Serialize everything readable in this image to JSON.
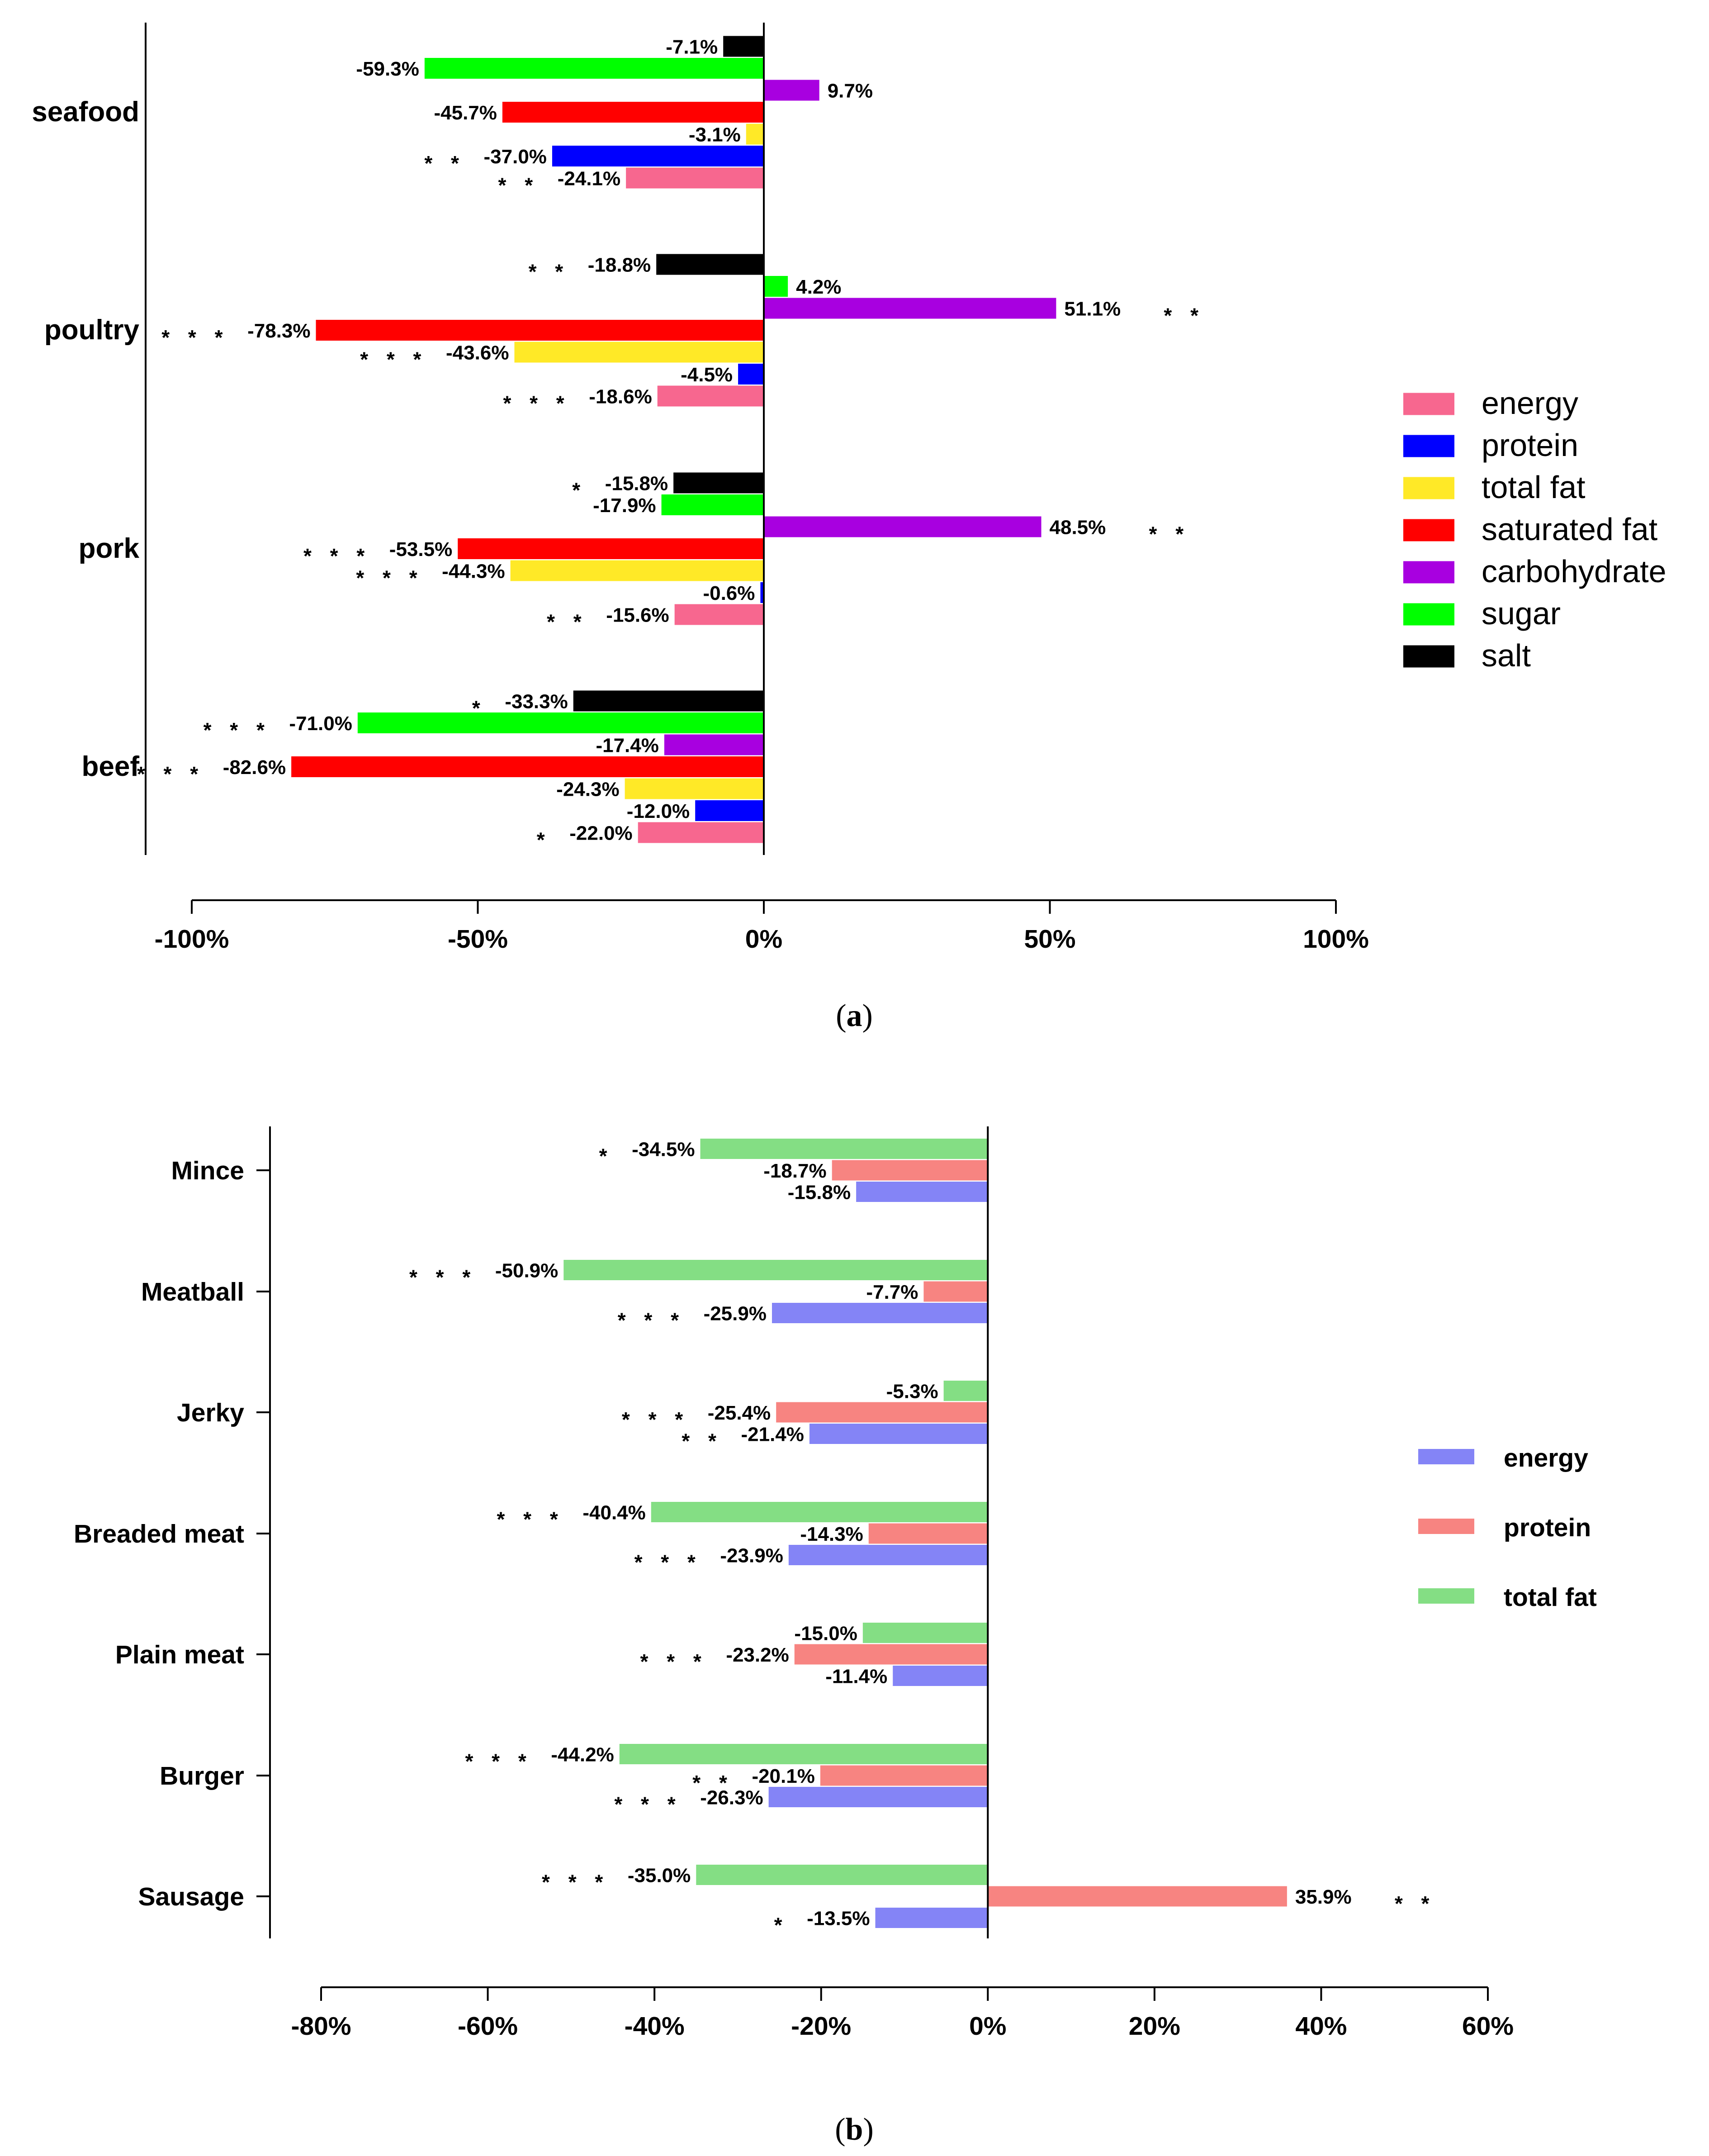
{
  "chart_data": [
    {
      "id": "a",
      "type": "bar",
      "orientation": "horizontal",
      "caption": "a",
      "xlim": [
        -100,
        100
      ],
      "xticks": [
        -100,
        -50,
        0,
        50,
        100
      ],
      "tick_labels": [
        "-100%",
        "-50%",
        "0%",
        "50%",
        "100%"
      ],
      "categories": [
        "seafood",
        "poultry",
        "pork",
        "beef"
      ],
      "legend": [
        "energy",
        "protein",
        "total fat",
        "saturated fat",
        "carbohydrate",
        "sugar",
        "salt"
      ],
      "colors": {
        "energy": "#f7678f",
        "protein": "#0000ff",
        "total fat": "#ffe927",
        "saturated fat": "#ff0000",
        "carbohydrate": "#a800e0",
        "sugar": "#00ff00",
        "salt": "#000000"
      },
      "bars": [
        {
          "category": "seafood",
          "series": "salt",
          "value": -7.1,
          "label": "-7.1%",
          "sig": ""
        },
        {
          "category": "seafood",
          "series": "sugar",
          "value": -59.3,
          "label": "-59.3%",
          "sig": ""
        },
        {
          "category": "seafood",
          "series": "carbohydrate",
          "value": 9.7,
          "label": "9.7%",
          "sig": ""
        },
        {
          "category": "seafood",
          "series": "saturated fat",
          "value": -45.7,
          "label": "-45.7%",
          "sig": ""
        },
        {
          "category": "seafood",
          "series": "total fat",
          "value": -3.1,
          "label": "-3.1%",
          "sig": ""
        },
        {
          "category": "seafood",
          "series": "protein",
          "value": -37.0,
          "label": "-37.0%",
          "sig": "**"
        },
        {
          "category": "seafood",
          "series": "energy",
          "value": -24.1,
          "label": "-24.1%",
          "sig": "**"
        },
        {
          "category": "poultry",
          "series": "salt",
          "value": -18.8,
          "label": "-18.8%",
          "sig": "**"
        },
        {
          "category": "poultry",
          "series": "sugar",
          "value": 4.2,
          "label": "4.2%",
          "sig": ""
        },
        {
          "category": "poultry",
          "series": "carbohydrate",
          "value": 51.1,
          "label": "51.1%",
          "sig": "**"
        },
        {
          "category": "poultry",
          "series": "saturated fat",
          "value": -78.3,
          "label": "-78.3%",
          "sig": "***"
        },
        {
          "category": "poultry",
          "series": "total fat",
          "value": -43.6,
          "label": "-43.6%",
          "sig": "***"
        },
        {
          "category": "poultry",
          "series": "protein",
          "value": -4.5,
          "label": "-4.5%",
          "sig": ""
        },
        {
          "category": "poultry",
          "series": "energy",
          "value": -18.6,
          "label": "-18.6%",
          "sig": "***"
        },
        {
          "category": "pork",
          "series": "salt",
          "value": -15.8,
          "label": "-15.8%",
          "sig": "*"
        },
        {
          "category": "pork",
          "series": "sugar",
          "value": -17.9,
          "label": "-17.9%",
          "sig": ""
        },
        {
          "category": "pork",
          "series": "carbohydrate",
          "value": 48.5,
          "label": "48.5%",
          "sig": "**"
        },
        {
          "category": "pork",
          "series": "saturated fat",
          "value": -53.5,
          "label": "-53.5%",
          "sig": "***"
        },
        {
          "category": "pork",
          "series": "total fat",
          "value": -44.3,
          "label": "-44.3%",
          "sig": "***"
        },
        {
          "category": "pork",
          "series": "protein",
          "value": -0.6,
          "label": "-0.6%",
          "sig": ""
        },
        {
          "category": "pork",
          "series": "energy",
          "value": -15.6,
          "label": "-15.6%",
          "sig": "**"
        },
        {
          "category": "beef",
          "series": "salt",
          "value": -33.3,
          "label": "-33.3%",
          "sig": "*"
        },
        {
          "category": "beef",
          "series": "sugar",
          "value": -71.0,
          "label": "-71.0%",
          "sig": "***"
        },
        {
          "category": "beef",
          "series": "carbohydrate",
          "value": -17.4,
          "label": "-17.4%",
          "sig": ""
        },
        {
          "category": "beef",
          "series": "saturated fat",
          "value": -82.6,
          "label": "-82.6%",
          "sig": "***"
        },
        {
          "category": "beef",
          "series": "total fat",
          "value": -24.3,
          "label": "-24.3%",
          "sig": ""
        },
        {
          "category": "beef",
          "series": "protein",
          "value": -12.0,
          "label": "-12.0%",
          "sig": ""
        },
        {
          "category": "beef",
          "series": "energy",
          "value": -22.0,
          "label": "-22.0%",
          "sig": "*"
        }
      ]
    },
    {
      "id": "b",
      "type": "bar",
      "orientation": "horizontal",
      "caption": "b",
      "xlim": [
        -80,
        60
      ],
      "xticks": [
        -80,
        -60,
        -40,
        -20,
        0,
        20,
        40,
        60
      ],
      "tick_labels": [
        "-80%",
        "-60%",
        "-40%",
        "-20%",
        "0%",
        "20%",
        "40%",
        "60%"
      ],
      "categories": [
        "Mince",
        "Meatball",
        "Jerky",
        "Breaded meat",
        "Plain meat",
        "Burger",
        "Sausage"
      ],
      "legend": [
        "energy",
        "protein",
        "total fat"
      ],
      "colors": {
        "energy": "#8484f6",
        "protein": "#f78481",
        "total fat": "#84de84"
      },
      "bars": [
        {
          "category": "Mince",
          "series": "total fat",
          "value": -34.5,
          "label": "-34.5%",
          "sig": "*"
        },
        {
          "category": "Mince",
          "series": "protein",
          "value": -18.7,
          "label": "-18.7%",
          "sig": ""
        },
        {
          "category": "Mince",
          "series": "energy",
          "value": -15.8,
          "label": "-15.8%",
          "sig": ""
        },
        {
          "category": "Meatball",
          "series": "total fat",
          "value": -50.9,
          "label": "-50.9%",
          "sig": "***"
        },
        {
          "category": "Meatball",
          "series": "protein",
          "value": -7.7,
          "label": "-7.7%",
          "sig": ""
        },
        {
          "category": "Meatball",
          "series": "energy",
          "value": -25.9,
          "label": "-25.9%",
          "sig": "***"
        },
        {
          "category": "Jerky",
          "series": "total fat",
          "value": -5.3,
          "label": "-5.3%",
          "sig": ""
        },
        {
          "category": "Jerky",
          "series": "protein",
          "value": -25.4,
          "label": "-25.4%",
          "sig": "***"
        },
        {
          "category": "Jerky",
          "series": "energy",
          "value": -21.4,
          "label": "-21.4%",
          "sig": "**"
        },
        {
          "category": "Breaded meat",
          "series": "total fat",
          "value": -40.4,
          "label": "-40.4%",
          "sig": "***"
        },
        {
          "category": "Breaded meat",
          "series": "protein",
          "value": -14.3,
          "label": "-14.3%",
          "sig": ""
        },
        {
          "category": "Breaded meat",
          "series": "energy",
          "value": -23.9,
          "label": "-23.9%",
          "sig": "***"
        },
        {
          "category": "Plain meat",
          "series": "total fat",
          "value": -15.0,
          "label": "-15.0%",
          "sig": ""
        },
        {
          "category": "Plain meat",
          "series": "protein",
          "value": -23.2,
          "label": "-23.2%",
          "sig": "***"
        },
        {
          "category": "Plain meat",
          "series": "energy",
          "value": -11.4,
          "label": "-11.4%",
          "sig": ""
        },
        {
          "category": "Burger",
          "series": "total fat",
          "value": -44.2,
          "label": "-44.2%",
          "sig": "***"
        },
        {
          "category": "Burger",
          "series": "protein",
          "value": -20.1,
          "label": "-20.1%",
          "sig": "**"
        },
        {
          "category": "Burger",
          "series": "energy",
          "value": -26.3,
          "label": "-26.3%",
          "sig": "***"
        },
        {
          "category": "Sausage",
          "series": "total fat",
          "value": -35.0,
          "label": "-35.0%",
          "sig": "***"
        },
        {
          "category": "Sausage",
          "series": "protein",
          "value": 35.9,
          "label": "35.9%",
          "sig": "**"
        },
        {
          "category": "Sausage",
          "series": "energy",
          "value": -13.5,
          "label": "-13.5%",
          "sig": "*"
        }
      ]
    }
  ]
}
